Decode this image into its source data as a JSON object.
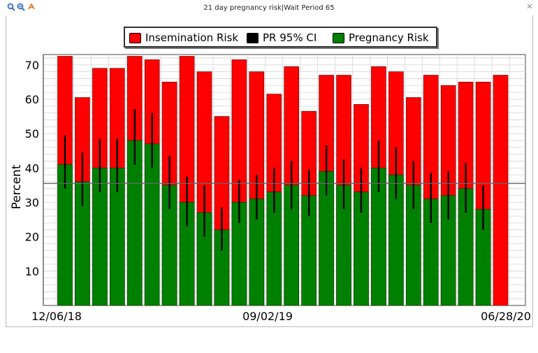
{
  "window": {
    "title": "21 day pregnancy risk|Wait Period  65",
    "toolbar_icons": [
      "zoom-in-icon",
      "zoom-out-icon",
      "reset-icon"
    ]
  },
  "legend": {
    "insemination_label": "Insemination Risk",
    "ci_label": "PR 95% CI",
    "pregnancy_label": "Pregnancy Risk"
  },
  "colors": {
    "insemination": "#ff0000",
    "pregnancy": "#008000",
    "ci": "#000000",
    "reference_line": "#666666"
  },
  "chart_data": {
    "type": "bar",
    "ylabel": "Percent",
    "ylim": [
      0,
      73
    ],
    "yticks": [
      10,
      20,
      30,
      40,
      50,
      60,
      70
    ],
    "x_tick_labels": [
      "12/06/18",
      "09/02/19",
      "06/28/20"
    ],
    "reference_line": 35.5,
    "grid": true,
    "legend_position": "top",
    "series": [
      {
        "name": "Insemination Risk",
        "values": [
          72.5,
          60.5,
          69,
          69,
          72.5,
          71.5,
          65,
          72.5,
          68,
          55,
          71.5,
          68,
          61.5,
          69.5,
          56.5,
          67,
          67,
          58.5,
          69.5,
          68,
          60.5,
          67,
          64,
          65,
          65,
          67
        ]
      },
      {
        "name": "Pregnancy Risk",
        "values": [
          41,
          36,
          40,
          40,
          48,
          47,
          35,
          30,
          27,
          22,
          30,
          31,
          33,
          35,
          32,
          39,
          35,
          33,
          40,
          38,
          35,
          31,
          32,
          34,
          28,
          null
        ]
      },
      {
        "name": "PR 95% CI",
        "lower": [
          34,
          29,
          33,
          33,
          41,
          40,
          28,
          23,
          20,
          16,
          24,
          25,
          27,
          28,
          26,
          32,
          28,
          27,
          33,
          31,
          28,
          24,
          25,
          27,
          22,
          null
        ],
        "upper": [
          49.5,
          44.5,
          48.5,
          48.5,
          57,
          56,
          43.5,
          37.5,
          35,
          28.5,
          36.5,
          38,
          40,
          42,
          39.5,
          46.5,
          42.5,
          40,
          48,
          46,
          42,
          38.5,
          39,
          41.5,
          35,
          null
        ]
      }
    ]
  }
}
